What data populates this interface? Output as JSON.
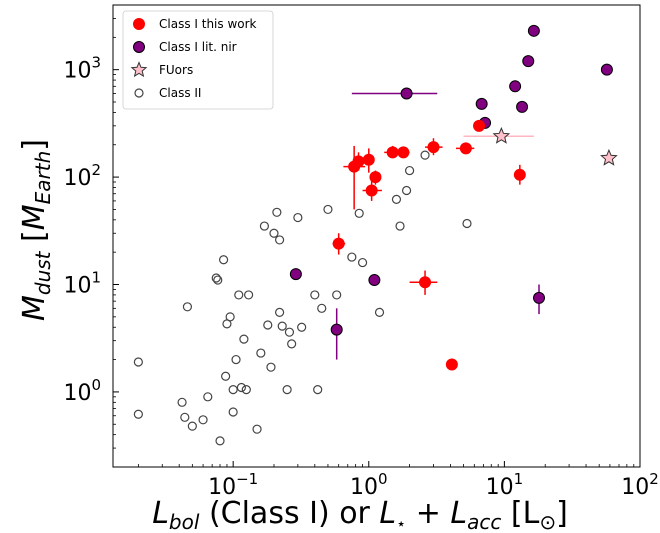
{
  "chart_data": {
    "type": "scatter",
    "title": "",
    "xlabel": {
      "main": "L",
      "sub": "bol",
      "middle": " (Class I) or ",
      "main2": "L",
      "sub2": "⋆",
      "plus": " + ",
      "main3": "L",
      "sub3": "acc",
      "unit": " [L",
      "unit_sub": "⊙",
      "close": "]"
    },
    "ylabel": {
      "main": "M",
      "sub": "dust",
      "open": "  [",
      "main2": "M",
      "sub2": "Earth",
      "close": "]"
    },
    "xscale": "log",
    "yscale": "log",
    "xlim": [
      0.013,
      100
    ],
    "ylim": [
      0.2,
      4000
    ],
    "x_ticks": [
      {
        "value": 0.1,
        "base": "10",
        "exp": "−1"
      },
      {
        "value": 1,
        "base": "10",
        "exp": "0"
      },
      {
        "value": 10,
        "base": "10",
        "exp": "1"
      },
      {
        "value": 100,
        "base": "10",
        "exp": "2"
      }
    ],
    "y_ticks": [
      {
        "value": 1,
        "base": "10",
        "exp": "0"
      },
      {
        "value": 10,
        "base": "10",
        "exp": "1"
      },
      {
        "value": 100,
        "base": "10",
        "exp": "2"
      },
      {
        "value": 1000,
        "base": "10",
        "exp": "3"
      }
    ],
    "legend_position": "top-left",
    "legend": [
      {
        "label": "Class I this work",
        "marker": "circle-filled",
        "color": "#ff0000"
      },
      {
        "label": "Class I  lit. nir",
        "marker": "circle-filled-edge",
        "color": "#800080"
      },
      {
        "label": "FUors",
        "marker": "star",
        "color": "#ffc0cb"
      },
      {
        "label": "Class II",
        "marker": "circle-open",
        "color": "#555555"
      }
    ],
    "series": [
      {
        "name": "Class I this work",
        "color": "#ff0000",
        "points": [
          {
            "x": 0.6,
            "y": 24,
            "xerr": [
              0.06,
              0.07
            ],
            "yerr": [
              5,
              6
            ]
          },
          {
            "x": 0.78,
            "y": 125,
            "xerr": [
              0.13,
              0.16
            ],
            "yerr": [
              75,
              70
            ]
          },
          {
            "x": 0.84,
            "y": 140,
            "xerr": [
              0.08,
              0.1
            ],
            "yerr": [
              25,
              30
            ]
          },
          {
            "x": 1.0,
            "y": 145,
            "xerr": [
              0.1,
              0.1
            ],
            "yerr": [
              35,
              40
            ]
          },
          {
            "x": 1.05,
            "y": 75,
            "xerr": [
              0.15,
              0.2
            ],
            "yerr": [
              15,
              18
            ]
          },
          {
            "x": 1.12,
            "y": 100,
            "xerr": [
              0.1,
              0.1
            ],
            "yerr": [
              15,
              15
            ]
          },
          {
            "x": 1.5,
            "y": 170,
            "xerr": [
              0.2,
              0.2
            ],
            "yerr": [
              20,
              25
            ]
          },
          {
            "x": 1.8,
            "y": 170,
            "xerr": [
              0.2,
              0.2
            ],
            "yerr": [
              15,
              15
            ]
          },
          {
            "x": 2.6,
            "y": 10.5,
            "xerr": [
              0.6,
              0.6
            ],
            "yerr": [
              2.5,
              3
            ]
          },
          {
            "x": 3.0,
            "y": 190,
            "xerr": [
              0.4,
              0.5
            ],
            "yerr": [
              30,
              40
            ]
          },
          {
            "x": 4.1,
            "y": 1.8,
            "xerr": [
              0,
              0
            ],
            "yerr": [
              0,
              0
            ]
          },
          {
            "x": 5.2,
            "y": 185,
            "xerr": [
              0.8,
              0.8
            ],
            "yerr": [
              15,
              15
            ]
          },
          {
            "x": 6.5,
            "y": 300,
            "xerr": [
              0.5,
              0.5
            ],
            "yerr": [
              30,
              30
            ]
          },
          {
            "x": 13.0,
            "y": 105,
            "xerr": [
              0,
              0
            ],
            "yerr": [
              20,
              25
            ]
          }
        ]
      },
      {
        "name": "Class I  lit. nir",
        "color": "#800080",
        "points": [
          {
            "x": 0.29,
            "y": 12.5,
            "xerr": [
              0,
              0
            ],
            "yerr": [
              0,
              0
            ]
          },
          {
            "x": 0.58,
            "y": 3.8,
            "xerr": [
              0,
              0
            ],
            "yerr": [
              1.8,
              2.2
            ]
          },
          {
            "x": 1.1,
            "y": 11,
            "xerr": [
              0,
              0
            ],
            "yerr": [
              0,
              0
            ]
          },
          {
            "x": 1.9,
            "y": 600,
            "xerr": [
              1.15,
              1.3
            ],
            "yerr": [
              0,
              0
            ]
          },
          {
            "x": 6.8,
            "y": 480,
            "xerr": [
              0,
              0
            ],
            "yerr": [
              0,
              0
            ]
          },
          {
            "x": 7.2,
            "y": 320,
            "xerr": [
              0,
              0
            ],
            "yerr": [
              0,
              0
            ]
          },
          {
            "x": 12.0,
            "y": 700,
            "xerr": [
              0,
              0
            ],
            "yerr": [
              0,
              0
            ]
          },
          {
            "x": 13.5,
            "y": 450,
            "xerr": [
              0,
              0
            ],
            "yerr": [
              0,
              0
            ]
          },
          {
            "x": 15.0,
            "y": 1200,
            "xerr": [
              0,
              0
            ],
            "yerr": [
              0,
              0
            ]
          },
          {
            "x": 16.5,
            "y": 2300,
            "xerr": [
              0,
              0
            ],
            "yerr": [
              0,
              0
            ]
          },
          {
            "x": 18.0,
            "y": 7.5,
            "xerr": [
              0,
              0
            ],
            "yerr": [
              2.2,
              2.5
            ]
          },
          {
            "x": 57.0,
            "y": 1000,
            "xerr": [
              0,
              0
            ],
            "yerr": [
              0,
              0
            ]
          }
        ]
      },
      {
        "name": "FUors",
        "color": "#ffc0cb",
        "points": [
          {
            "x": 9.5,
            "y": 240,
            "xerr": [
              4.5,
              7
            ],
            "yerr": [
              0,
              0
            ]
          },
          {
            "x": 59.0,
            "y": 150,
            "xerr": [
              0,
              0
            ],
            "yerr": [
              0,
              0
            ]
          }
        ]
      },
      {
        "name": "Class II",
        "color": "#555555",
        "points": [
          {
            "x": 0.02,
            "y": 1.9
          },
          {
            "x": 0.02,
            "y": 0.62
          },
          {
            "x": 0.042,
            "y": 0.8
          },
          {
            "x": 0.044,
            "y": 0.58
          },
          {
            "x": 0.046,
            "y": 6.2
          },
          {
            "x": 0.05,
            "y": 0.48
          },
          {
            "x": 0.06,
            "y": 0.55
          },
          {
            "x": 0.065,
            "y": 0.9
          },
          {
            "x": 0.075,
            "y": 11.5
          },
          {
            "x": 0.077,
            "y": 11
          },
          {
            "x": 0.08,
            "y": 0.35
          },
          {
            "x": 0.085,
            "y": 17
          },
          {
            "x": 0.088,
            "y": 1.4
          },
          {
            "x": 0.09,
            "y": 4.3
          },
          {
            "x": 0.095,
            "y": 5
          },
          {
            "x": 0.1,
            "y": 0.65
          },
          {
            "x": 0.1,
            "y": 1.05
          },
          {
            "x": 0.105,
            "y": 2.0
          },
          {
            "x": 0.11,
            "y": 8
          },
          {
            "x": 0.115,
            "y": 1.1
          },
          {
            "x": 0.12,
            "y": 3.1
          },
          {
            "x": 0.125,
            "y": 1.05
          },
          {
            "x": 0.13,
            "y": 8
          },
          {
            "x": 0.15,
            "y": 0.45
          },
          {
            "x": 0.16,
            "y": 2.3
          },
          {
            "x": 0.17,
            "y": 35
          },
          {
            "x": 0.18,
            "y": 4.2
          },
          {
            "x": 0.19,
            "y": 1.7
          },
          {
            "x": 0.2,
            "y": 30
          },
          {
            "x": 0.21,
            "y": 47
          },
          {
            "x": 0.22,
            "y": 5.5
          },
          {
            "x": 0.22,
            "y": 26
          },
          {
            "x": 0.23,
            "y": 4.1
          },
          {
            "x": 0.25,
            "y": 1.05
          },
          {
            "x": 0.26,
            "y": 3.6
          },
          {
            "x": 0.27,
            "y": 2.8
          },
          {
            "x": 0.3,
            "y": 42
          },
          {
            "x": 0.32,
            "y": 4.0
          },
          {
            "x": 0.4,
            "y": 8
          },
          {
            "x": 0.42,
            "y": 1.05
          },
          {
            "x": 0.45,
            "y": 6
          },
          {
            "x": 0.5,
            "y": 50
          },
          {
            "x": 0.58,
            "y": 8
          },
          {
            "x": 0.75,
            "y": 18
          },
          {
            "x": 0.85,
            "y": 46
          },
          {
            "x": 0.9,
            "y": 16
          },
          {
            "x": 1.1,
            "y": 11
          },
          {
            "x": 1.2,
            "y": 5.5
          },
          {
            "x": 1.6,
            "y": 62
          },
          {
            "x": 1.7,
            "y": 35
          },
          {
            "x": 1.9,
            "y": 75
          },
          {
            "x": 2.0,
            "y": 115
          },
          {
            "x": 2.6,
            "y": 160
          },
          {
            "x": 5.3,
            "y": 37
          }
        ]
      }
    ]
  }
}
